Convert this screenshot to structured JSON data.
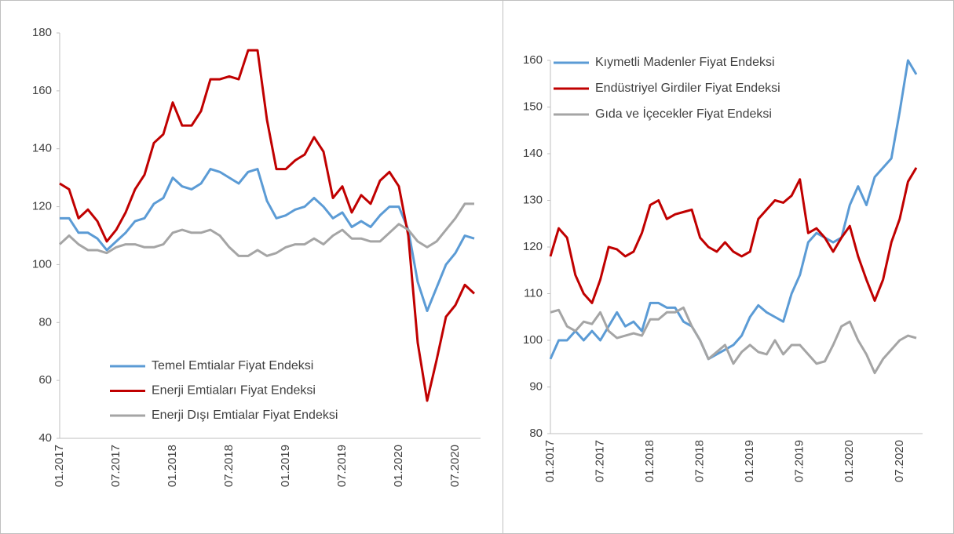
{
  "chart_data": [
    {
      "type": "line",
      "categories": [
        "01.2017",
        null,
        null,
        null,
        null,
        null,
        "07.2017",
        null,
        null,
        null,
        null,
        null,
        "01.2018",
        null,
        null,
        null,
        null,
        null,
        "07.2018",
        null,
        null,
        null,
        null,
        null,
        "01.2019",
        null,
        null,
        null,
        null,
        null,
        "07.2019",
        null,
        null,
        null,
        null,
        null,
        "01.2020",
        null,
        null,
        null,
        null,
        null,
        "07.2020",
        null,
        null
      ],
      "series": [
        {
          "name": "Temel Emtialar Fiyat Endeksi",
          "color": "#5b9bd5",
          "values": [
            116,
            116,
            111,
            111,
            109,
            105,
            108,
            111,
            115,
            116,
            121,
            123,
            130,
            127,
            126,
            128,
            133,
            132,
            130,
            128,
            132,
            133,
            122,
            116,
            117,
            119,
            120,
            123,
            120,
            116,
            118,
            113,
            115,
            113,
            117,
            120,
            120,
            112,
            94,
            84,
            92,
            100,
            104,
            110,
            109
          ]
        },
        {
          "name": "Enerji Emtiaları Fiyat Endeksi",
          "color": "#c00000",
          "values": [
            128,
            126,
            116,
            119,
            115,
            108,
            112,
            118,
            126,
            131,
            142,
            145,
            156,
            148,
            148,
            153,
            164,
            164,
            165,
            164,
            174,
            174,
            150,
            133,
            133,
            136,
            138,
            144,
            139,
            123,
            127,
            118,
            124,
            121,
            129,
            132,
            127,
            110,
            73,
            53,
            67,
            82,
            86,
            93,
            90
          ]
        },
        {
          "name": "Enerji Dışı Emtialar Fiyat Endeksi",
          "color": "#a5a5a5",
          "values": [
            107,
            110,
            107,
            105,
            105,
            104,
            106,
            107,
            107,
            106,
            106,
            107,
            111,
            112,
            111,
            111,
            112,
            110,
            106,
            103,
            103,
            105,
            103,
            104,
            106,
            107,
            107,
            109,
            107,
            110,
            112,
            109,
            109,
            108,
            108,
            111,
            114,
            112,
            108,
            106,
            108,
            112,
            116,
            121,
            121
          ]
        }
      ],
      "ylim": [
        40,
        180
      ],
      "yticks": [
        40,
        60,
        80,
        100,
        120,
        140,
        160,
        180
      ],
      "legend": "lower center"
    },
    {
      "type": "line",
      "categories": [
        "01.2017",
        null,
        null,
        null,
        null,
        null,
        "07.2017",
        null,
        null,
        null,
        null,
        null,
        "01.2018",
        null,
        null,
        null,
        null,
        null,
        "07.2018",
        null,
        null,
        null,
        null,
        null,
        "01.2019",
        null,
        null,
        null,
        null,
        null,
        "07.2019",
        null,
        null,
        null,
        null,
        null,
        "01.2020",
        null,
        null,
        null,
        null,
        null,
        "07.2020",
        null,
        null
      ],
      "series": [
        {
          "name": "Kıymetli Madenler Fiyat Endeksi",
          "color": "#5b9bd5",
          "values": [
            96,
            100,
            100,
            102,
            100,
            102,
            100,
            103,
            106,
            103,
            104,
            102,
            108,
            108,
            107,
            107,
            104,
            103,
            100,
            96,
            97,
            98,
            99,
            101,
            105,
            107.5,
            106,
            105,
            104,
            110,
            114,
            121,
            123,
            122,
            121,
            122,
            129,
            133,
            129,
            135,
            137,
            139,
            149,
            160,
            157
          ]
        },
        {
          "name": "Endüstriyel Girdiler Fiyat Endeksi",
          "color": "#c00000",
          "values": [
            118,
            124,
            122,
            114,
            110,
            108,
            113,
            120,
            119.5,
            118,
            119,
            123,
            129,
            130,
            126,
            127,
            127.5,
            128,
            122,
            120,
            119,
            121,
            119,
            118,
            119,
            126,
            128,
            130,
            129.5,
            131,
            134.5,
            123,
            124,
            122,
            119,
            122,
            124.5,
            118,
            113,
            108.5,
            113,
            121,
            126,
            134,
            137
          ]
        },
        {
          "name": "Gıda ve İçecekler  Fiyat Endeksi",
          "color": "#a5a5a5",
          "values": [
            106,
            106.5,
            103,
            102,
            104,
            103.5,
            106,
            102,
            100.5,
            101,
            101.5,
            101,
            104.5,
            104.5,
            106,
            106,
            107,
            103,
            100,
            96,
            97.5,
            99,
            95,
            97.5,
            99,
            97.5,
            97,
            100,
            97,
            99,
            99,
            97,
            95,
            95.5,
            99,
            103,
            104,
            100,
            97,
            93,
            96,
            98,
            100,
            101,
            100.5
          ]
        }
      ],
      "ylim": [
        80,
        160
      ],
      "yticks": [
        80,
        90,
        100,
        110,
        120,
        130,
        140,
        150,
        160
      ],
      "legend": "upper left"
    }
  ]
}
